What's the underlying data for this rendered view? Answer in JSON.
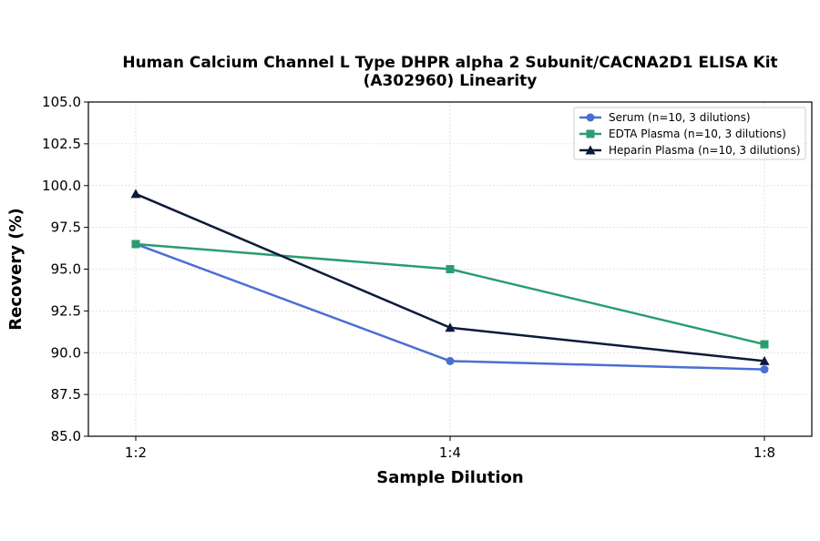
{
  "chart_data": {
    "type": "line",
    "title": [
      "Human Calcium Channel L Type DHPR alpha 2 Subunit/CACNA2D1 ELISA Kit",
      "(A302960) Linearity"
    ],
    "xlabel": "Sample Dilution",
    "ylabel": "Recovery (%)",
    "categories": [
      "1:2",
      "1:4",
      "1:8"
    ],
    "ylim": [
      85.0,
      105.0
    ],
    "yticks": [
      "85.0",
      "87.5",
      "90.0",
      "92.5",
      "95.0",
      "97.5",
      "100.0",
      "102.5",
      "105.0"
    ],
    "grid": true,
    "legend_position": "top-right",
    "series": [
      {
        "name": "Serum (n=10, 3 dilutions)",
        "values": [
          96.5,
          89.5,
          89.0
        ],
        "color": "#4a6fd1",
        "marker": "circle"
      },
      {
        "name": "EDTA Plasma (n=10, 3 dilutions)",
        "values": [
          96.5,
          95.0,
          90.5
        ],
        "color": "#2a9d70",
        "marker": "square"
      },
      {
        "name": "Heparin Plasma (n=10, 3 dilutions)",
        "values": [
          99.5,
          91.5,
          89.5
        ],
        "color": "#0c1a3a",
        "marker": "triangle"
      }
    ]
  }
}
